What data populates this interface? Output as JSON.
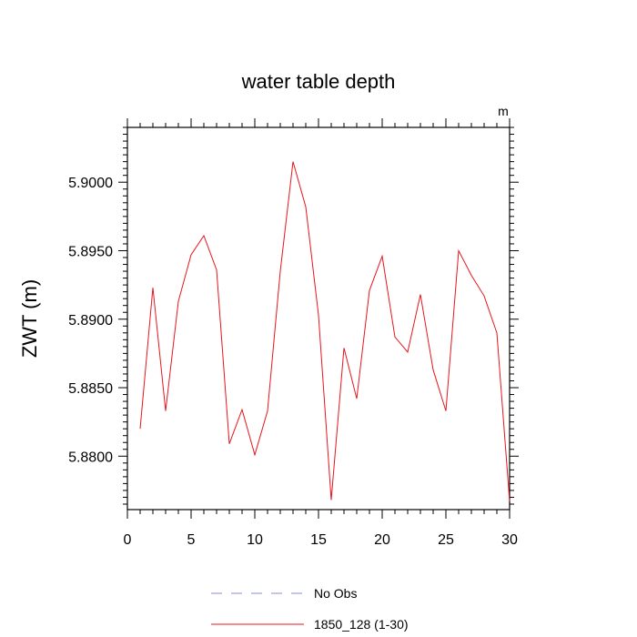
{
  "chart_data": {
    "type": "line",
    "title": "water table depth",
    "units_label": "m",
    "ylabel": "ZWT  (m)",
    "xlabel": "",
    "xlim": [
      0,
      30
    ],
    "ylim": [
      5.8761,
      5.904
    ],
    "x_ticks": [
      0,
      5,
      10,
      15,
      20,
      25,
      30
    ],
    "x_tick_labels": [
      "0",
      "5",
      "10",
      "15",
      "20",
      "25",
      "30"
    ],
    "y_ticks": [
      5.88,
      5.885,
      5.89,
      5.895,
      5.9
    ],
    "y_tick_labels": [
      "5.8800",
      "5.8850",
      "5.8900",
      "5.8950",
      "5.9000"
    ],
    "grid": false,
    "legend_position": "bottom",
    "series": [
      {
        "name": "No Obs",
        "color": "#8a8ae6",
        "dash": "dashed",
        "x": [],
        "y": []
      },
      {
        "name": "1850_128 (1-30)",
        "color": "#e8141b",
        "dash": "solid",
        "x": [
          1,
          2,
          3,
          4,
          5,
          6,
          7,
          8,
          9,
          10,
          11,
          12,
          13,
          14,
          15,
          16,
          17,
          18,
          19,
          20,
          21,
          22,
          23,
          24,
          25,
          26,
          27,
          28,
          29,
          30
        ],
        "y": [
          5.882,
          5.8923,
          5.8833,
          5.8913,
          5.8947,
          5.8961,
          5.8936,
          5.8809,
          5.8834,
          5.8801,
          5.8833,
          5.8935,
          5.9015,
          5.8982,
          5.8903,
          5.8768,
          5.8879,
          5.8842,
          5.8921,
          5.8946,
          5.8887,
          5.8876,
          5.8918,
          5.8863,
          5.8833,
          5.895,
          5.8932,
          5.8917,
          5.889,
          5.8767
        ]
      }
    ]
  }
}
